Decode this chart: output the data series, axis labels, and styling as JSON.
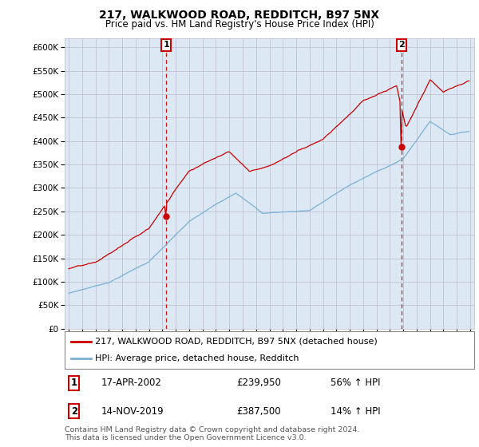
{
  "title": "217, WALKWOOD ROAD, REDDITCH, B97 5NX",
  "subtitle": "Price paid vs. HM Land Registry's House Price Index (HPI)",
  "ylabel_ticks": [
    "£0",
    "£50K",
    "£100K",
    "£150K",
    "£200K",
    "£250K",
    "£300K",
    "£350K",
    "£400K",
    "£450K",
    "£500K",
    "£550K",
    "£600K"
  ],
  "ylim": [
    0,
    620000
  ],
  "yticks": [
    0,
    50000,
    100000,
    150000,
    200000,
    250000,
    300000,
    350000,
    400000,
    450000,
    500000,
    550000,
    600000
  ],
  "xlim_start": 1994.7,
  "xlim_end": 2025.3,
  "xticks": [
    1995,
    1996,
    1997,
    1998,
    1999,
    2000,
    2001,
    2002,
    2003,
    2004,
    2005,
    2006,
    2007,
    2008,
    2009,
    2010,
    2011,
    2012,
    2013,
    2014,
    2015,
    2016,
    2017,
    2018,
    2019,
    2020,
    2021,
    2022,
    2023,
    2024,
    2025
  ],
  "sale1_x": 2002.29,
  "sale1_y": 239950,
  "sale2_x": 2019.87,
  "sale2_y": 387500,
  "property_line_color": "#cc0000",
  "hpi_line_color": "#7bafd4",
  "vline_color": "#cc0000",
  "marker_color": "#cc0000",
  "bg_color": "#ffffff",
  "chart_bg_color": "#dce9f5",
  "grid_color": "#bbbbcc",
  "legend_property": "217, WALKWOOD ROAD, REDDITCH, B97 5NX (detached house)",
  "legend_hpi": "HPI: Average price, detached house, Redditch",
  "sale1_date": "17-APR-2002",
  "sale1_price": "£239,950",
  "sale1_hpi": "56% ↑ HPI",
  "sale2_date": "14-NOV-2019",
  "sale2_price": "£387,500",
  "sale2_hpi": "14% ↑ HPI",
  "footer": "Contains HM Land Registry data © Crown copyright and database right 2024.\nThis data is licensed under the Open Government Licence v3.0."
}
